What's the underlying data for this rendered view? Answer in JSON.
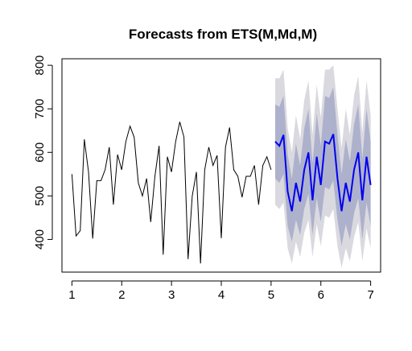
{
  "chart_data": {
    "type": "line",
    "title": "Forecasts from ETS(M,Md,M)",
    "xlabel": "",
    "ylabel": "",
    "xlim": [
      0.8,
      7.2
    ],
    "ylim": [
      325,
      815
    ],
    "x_ticks": [
      1,
      2,
      3,
      4,
      5,
      6,
      7
    ],
    "y_ticks": [
      400,
      500,
      600,
      700,
      800
    ],
    "grid": false,
    "colors": {
      "observed": "#000000",
      "forecast_mean": "#0000ee",
      "interval_80": "#aeb1cc",
      "interval_95": "#d9d9df"
    },
    "observed": {
      "start": 1,
      "step": 0.0833333,
      "values": [
        550,
        408,
        420,
        630,
        555,
        402,
        535,
        535,
        560,
        612,
        480,
        595,
        560,
        625,
        660,
        635,
        530,
        500,
        540,
        440,
        545,
        615,
        365,
        590,
        555,
        625,
        670,
        635,
        355,
        500,
        555,
        345,
        560,
        612,
        570,
        593,
        403,
        612,
        657,
        560,
        545,
        497,
        545,
        545,
        570,
        480,
        570,
        590,
        560
      ]
    },
    "forecast": {
      "start": 5.0833333,
      "step": 0.0833333,
      "mean": [
        625,
        615,
        640,
        510,
        465,
        530,
        487,
        560,
        600,
        490,
        590,
        525,
        625,
        620,
        642,
        540,
        465,
        530,
        487,
        560,
        600,
        490,
        590,
        525
      ],
      "lo80": [
        540,
        530,
        550,
        430,
        395,
        445,
        410,
        470,
        505,
        410,
        495,
        440,
        520,
        515,
        535,
        445,
        385,
        435,
        400,
        460,
        495,
        400,
        485,
        430
      ],
      "hi80": [
        710,
        705,
        730,
        595,
        540,
        620,
        570,
        655,
        700,
        575,
        690,
        615,
        730,
        725,
        750,
        640,
        550,
        630,
        580,
        665,
        710,
        585,
        700,
        625
      ],
      "lo95": [
        480,
        470,
        485,
        380,
        345,
        395,
        360,
        415,
        445,
        360,
        435,
        385,
        455,
        450,
        470,
        385,
        335,
        380,
        350,
        405,
        440,
        350,
        425,
        380
      ],
      "hi95": [
        770,
        770,
        790,
        655,
        600,
        685,
        630,
        720,
        765,
        640,
        755,
        680,
        790,
        790,
        800,
        700,
        610,
        700,
        640,
        730,
        775,
        645,
        765,
        685
      ]
    }
  }
}
